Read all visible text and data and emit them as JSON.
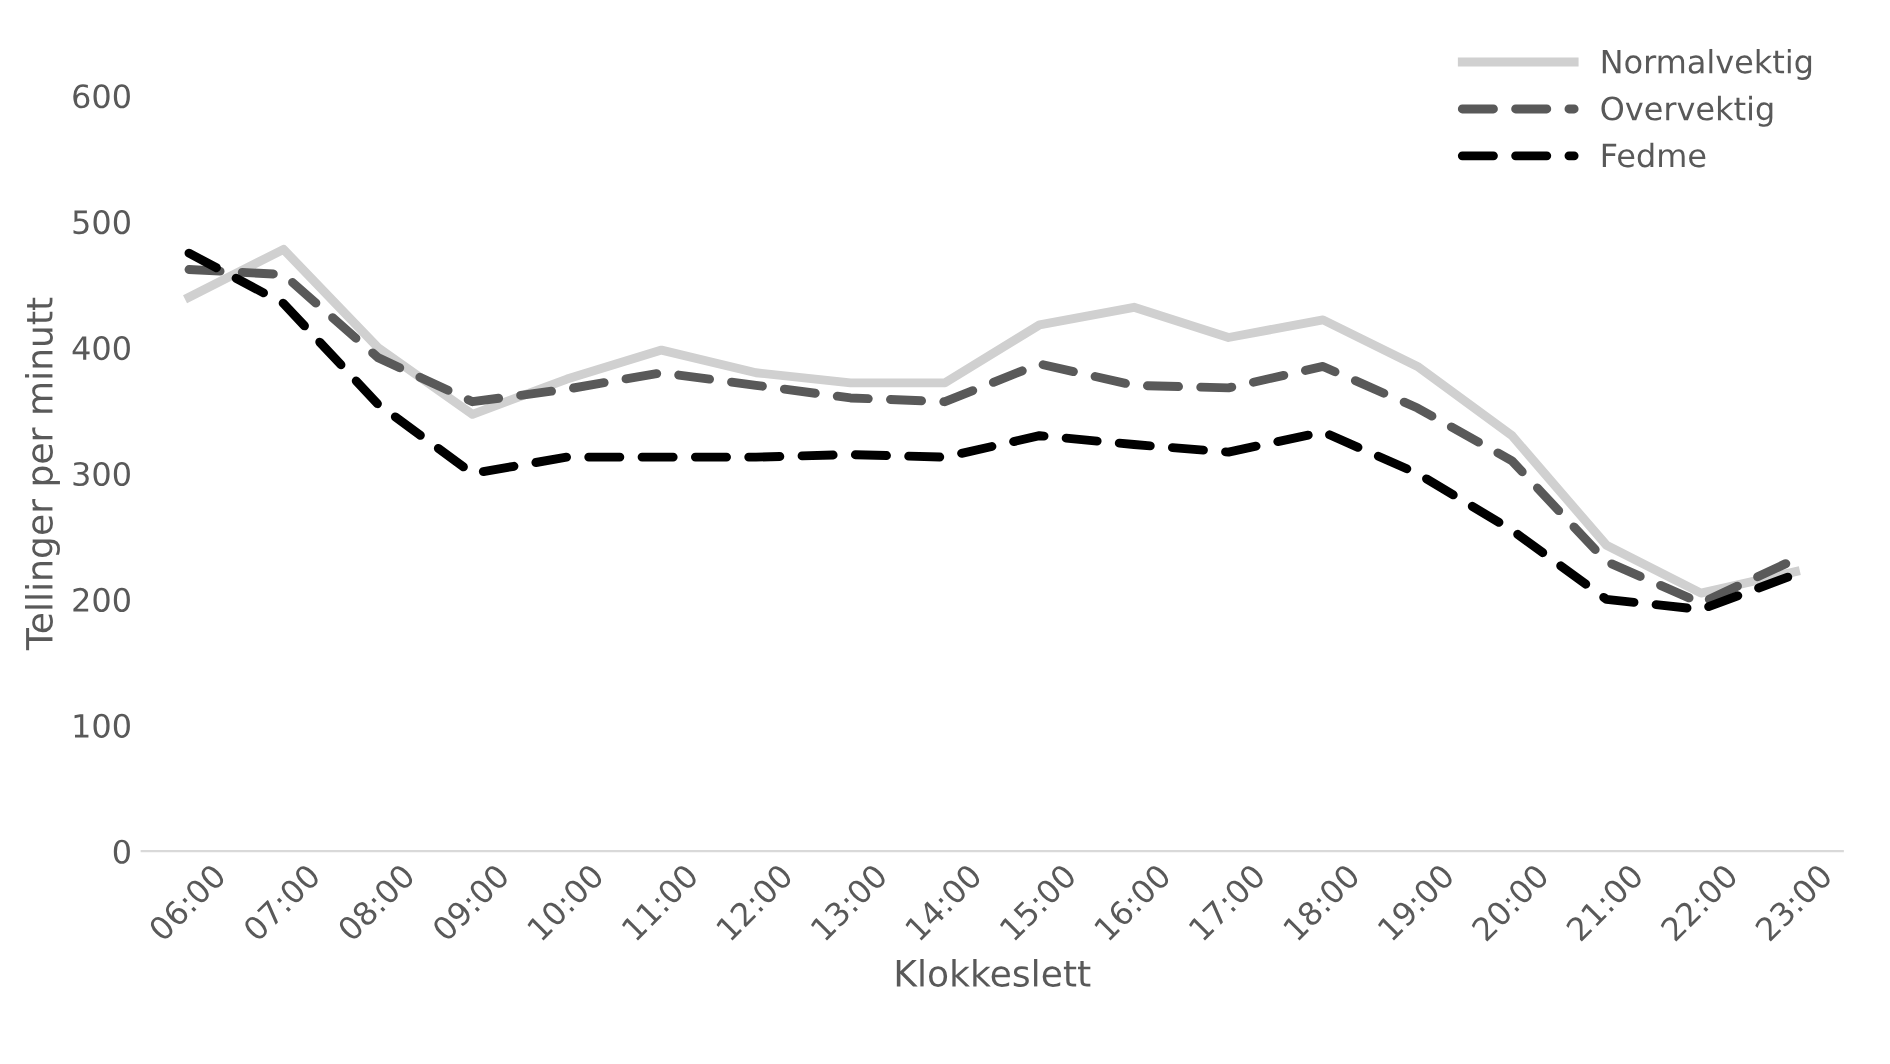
{
  "chart_data": {
    "type": "line",
    "xlabel": "Klokkeslett",
    "ylabel": "Tellinger per minutt",
    "categories": [
      "06:00",
      "07:00",
      "08:00",
      "09:00",
      "10:00",
      "11:00",
      "12:00",
      "13:00",
      "14:00",
      "15:00",
      "16:00",
      "17:00",
      "18:00",
      "19:00",
      "20:00",
      "21:00",
      "22:00",
      "23:00"
    ],
    "series": [
      {
        "name": "Normalvektig",
        "color": "#d0d0d0",
        "line_style": "solid",
        "values": [
          440,
          478,
          400,
          347,
          375,
          398,
          380,
          372,
          372,
          418,
          432,
          408,
          422,
          385,
          330,
          243,
          205,
          222
        ]
      },
      {
        "name": "Overvektig",
        "color": "#595959",
        "line_style": "dashed",
        "values": [
          462,
          458,
          392,
          357,
          367,
          380,
          370,
          360,
          357,
          387,
          370,
          368,
          385,
          352,
          310,
          230,
          197,
          232
        ]
      },
      {
        "name": "Fedme",
        "color": "#000000",
        "line_style": "dashed",
        "values": [
          475,
          435,
          355,
          300,
          313,
          313,
          313,
          315,
          313,
          330,
          323,
          317,
          333,
          300,
          255,
          200,
          192,
          220
        ]
      }
    ],
    "ylim": [
      0,
      600
    ],
    "yticks": [
      0,
      100,
      200,
      300,
      400,
      500,
      600
    ],
    "grid": false,
    "legend": "top right",
    "marker": "none"
  }
}
